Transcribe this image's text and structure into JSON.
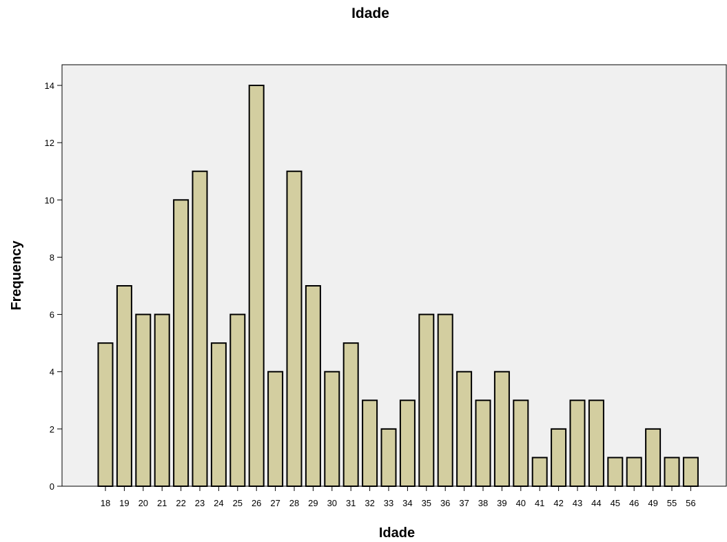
{
  "chart_data": {
    "type": "bar",
    "title": "Idade",
    "xlabel": "Idade",
    "ylabel": "Frequency",
    "ylim": [
      0,
      14
    ],
    "yticks": [
      0,
      2,
      4,
      6,
      8,
      10,
      12,
      14
    ],
    "grid": false,
    "categories": [
      "18",
      "19",
      "20",
      "21",
      "22",
      "23",
      "24",
      "25",
      "26",
      "27",
      "28",
      "29",
      "30",
      "31",
      "32",
      "33",
      "34",
      "35",
      "36",
      "37",
      "38",
      "39",
      "40",
      "41",
      "42",
      "43",
      "44",
      "45",
      "46",
      "49",
      "55",
      "56"
    ],
    "values": [
      5,
      7,
      6,
      6,
      10,
      11,
      5,
      6,
      14,
      4,
      11,
      7,
      4,
      5,
      3,
      2,
      3,
      6,
      6,
      4,
      3,
      4,
      3,
      1,
      2,
      3,
      3,
      1,
      1,
      2,
      1,
      1
    ],
    "colors": {
      "bar_fill": "#d3cea0",
      "bar_stroke": "#000000",
      "plot_bg": "#f0f0f0"
    }
  }
}
